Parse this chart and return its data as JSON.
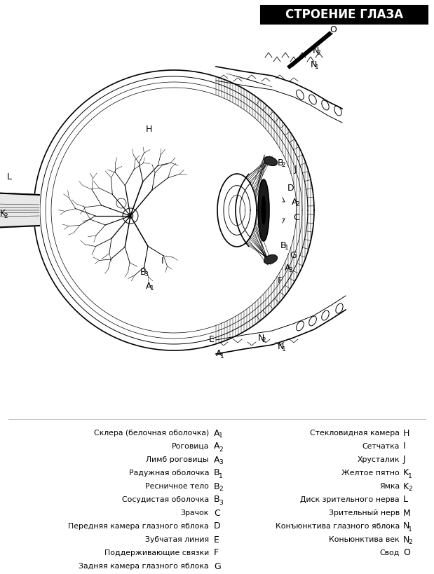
{
  "title": "СТРОЕНИЕ ГЛАЗА",
  "bg_color": "#ffffff",
  "line_color": "#000000",
  "legend_left": [
    [
      "Склера (белочная оболочка)",
      "A",
      "1"
    ],
    [
      "Роговица",
      "A",
      "2"
    ],
    [
      "Лимб роговицы",
      "A",
      "3"
    ],
    [
      "Радужная оболочка",
      "B",
      "1"
    ],
    [
      "Ресничное тело",
      "B",
      "2"
    ],
    [
      "Сосудистая оболочка",
      "B",
      "3"
    ],
    [
      "Зрачок",
      "C",
      ""
    ],
    [
      "Передняя камера глазного яблока",
      "D",
      ""
    ],
    [
      "Зубчатая линия",
      "E",
      ""
    ],
    [
      "Поддерживающие связки",
      "F",
      ""
    ],
    [
      "Задняя камера глазного яблока",
      "G",
      ""
    ]
  ],
  "legend_right": [
    [
      "Стекловидная камера",
      "H",
      ""
    ],
    [
      "Сетчатка",
      "I",
      ""
    ],
    [
      "Хрусталик",
      "J",
      ""
    ],
    [
      "Желтое пятно",
      "K",
      "1"
    ],
    [
      "Ямка",
      "K",
      "2"
    ],
    [
      "Диск зрительного нерва",
      "L",
      ""
    ],
    [
      "Зрительный нерв",
      "M",
      ""
    ],
    [
      "Конъюнктива глазного яблока",
      "N",
      "1"
    ],
    [
      "Коньюнктива век",
      "N",
      "2"
    ],
    [
      "Свод",
      "O",
      ""
    ]
  ]
}
